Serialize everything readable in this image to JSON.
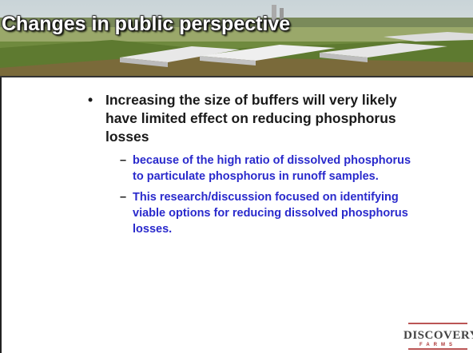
{
  "header": {
    "title": "Changes in public perspective"
  },
  "body": {
    "bullets": [
      {
        "text": "Increasing the size of buffers will very likely have limited effect on reducing phosphorus losses",
        "sub_bullets": [
          "because of the high ratio of dissolved phosphorus to particulate phosphorus in runoff samples.",
          "This research/discussion focused on identifying viable options for reducing dissolved phosphorus losses."
        ]
      }
    ]
  },
  "logo": {
    "name": "DISCOVERY",
    "subtitle": "FARMS"
  }
}
